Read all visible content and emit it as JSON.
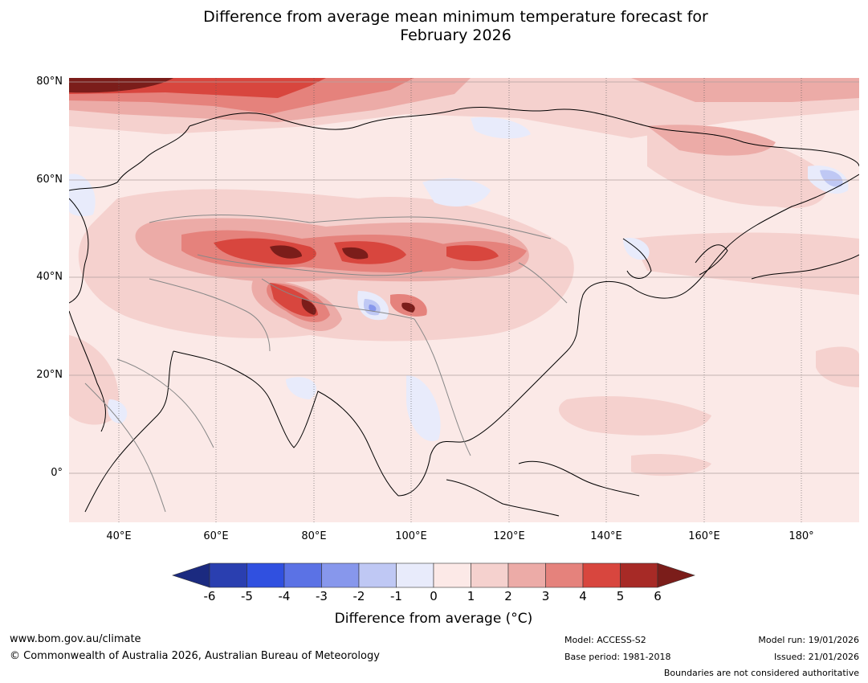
{
  "title": {
    "line1": "Difference from average mean minimum temperature forecast for",
    "line2": "February 2026"
  },
  "map": {
    "lat_labels": [
      "80°N",
      "60°N",
      "40°N",
      "20°N",
      "0°"
    ],
    "lon_labels": [
      "40°E",
      "60°E",
      "80°E",
      "100°E",
      "120°E",
      "140°E",
      "160°E",
      "180°"
    ],
    "extent": {
      "lon_min": 30,
      "lon_max": 192,
      "lat_min": -10,
      "lat_max": 81
    }
  },
  "colorbar": {
    "ticks": [
      "-6",
      "-5",
      "-4",
      "-3",
      "-2",
      "-1",
      "0",
      "1",
      "2",
      "3",
      "4",
      "5",
      "6"
    ],
    "colors": [
      "#1b2a80",
      "#2a3fb0",
      "#3050e0",
      "#5b72e5",
      "#8797ec",
      "#bfc8f4",
      "#e8ebfb",
      "#fce9e7",
      "#f5d1ce",
      "#ecaba7",
      "#e5827c",
      "#d8463e",
      "#a72a26",
      "#7b1d1a"
    ],
    "label": "Difference from average (°C)"
  },
  "footer": {
    "url": "www.bom.gov.au/climate",
    "copyright": "© Commonwealth of Australia 2026, Australian Bureau of Meteorology",
    "model": "Model: ACCESS-S2",
    "base_period": "Base period: 1981-2018",
    "model_run": "Model run: 19/01/2026",
    "issued": "Issued: 21/01/2026",
    "disclaimer": "Boundaries are not considered authoritative"
  }
}
